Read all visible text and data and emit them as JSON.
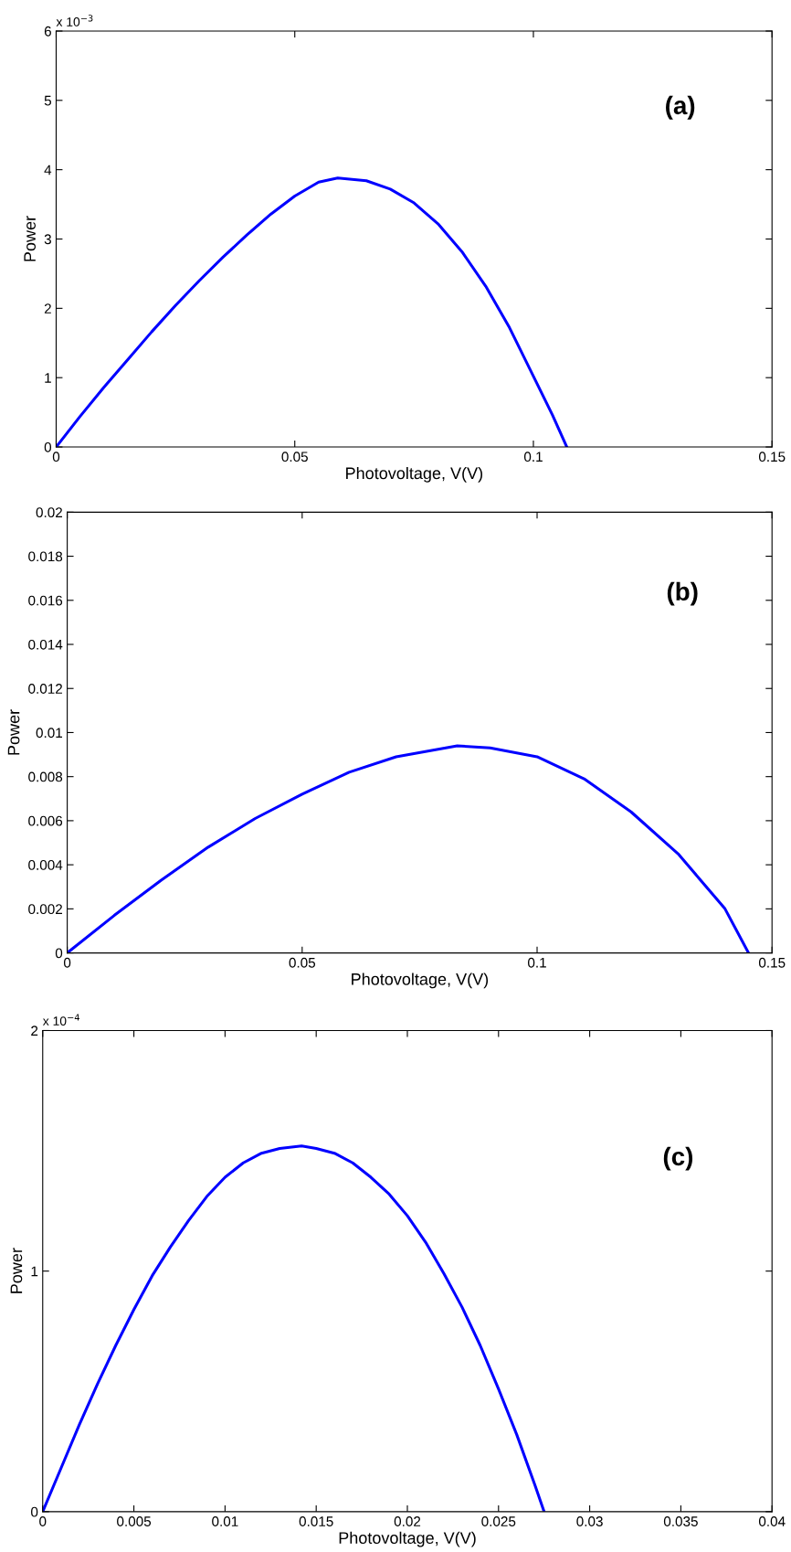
{
  "chart_data": [
    {
      "type": "line",
      "xlabel": "Photovoltage, V(V)",
      "ylabel": "Power",
      "annotations": [
        "(a)",
        "x 10$^{−3}$"
      ],
      "xlim": [
        0,
        0.15
      ],
      "xticks": [
        0,
        0.05,
        0.1,
        0.15
      ],
      "ylim": [
        0,
        6
      ],
      "yticks": [
        0,
        1,
        2,
        3,
        4,
        5,
        6
      ],
      "grid": false,
      "legend": false,
      "series": [
        {
          "color": "#0000ff",
          "x": [
            0,
            0.005,
            0.01,
            0.015,
            0.02,
            0.025,
            0.03,
            0.035,
            0.04,
            0.045,
            0.05,
            0.055,
            0.059,
            0.065,
            0.07,
            0.075,
            0.08,
            0.085,
            0.09,
            0.095,
            0.1,
            0.104,
            0.107
          ],
          "values": [
            0,
            0.44,
            0.86,
            1.26,
            1.66,
            2.04,
            2.4,
            2.74,
            3.06,
            3.36,
            3.62,
            3.82,
            3.88,
            3.84,
            3.72,
            3.52,
            3.22,
            2.82,
            2.32,
            1.72,
            1.02,
            0.46,
            0
          ]
        }
      ]
    },
    {
      "type": "line",
      "xlabel": "Photovoltage, V(V)",
      "ylabel": "Power",
      "annotations": [
        "(b)"
      ],
      "xlim": [
        0,
        0.15
      ],
      "xticks": [
        0,
        0.05,
        0.1,
        0.15
      ],
      "ylim": [
        0,
        0.02
      ],
      "yticks": [
        0,
        0.002,
        0.004,
        0.006,
        0.008,
        0.01,
        0.012,
        0.014,
        0.016,
        0.018,
        0.02
      ],
      "grid": false,
      "legend": false,
      "series": [
        {
          "color": "#0000ff",
          "x": [
            0,
            0.01,
            0.02,
            0.03,
            0.04,
            0.05,
            0.06,
            0.07,
            0.083,
            0.09,
            0.1,
            0.11,
            0.12,
            0.13,
            0.14,
            0.145
          ],
          "values": [
            0,
            0.0017,
            0.0033,
            0.0048,
            0.0061,
            0.0072,
            0.0082,
            0.0089,
            0.0094,
            0.0093,
            0.0089,
            0.0079,
            0.0064,
            0.0045,
            0.002,
            0
          ]
        }
      ]
    },
    {
      "type": "line",
      "xlabel": "Photovoltage, V(V)",
      "ylabel": "Power",
      "annotations": [
        "(c)",
        "x 10$^{−4}$"
      ],
      "xlim": [
        0,
        0.04
      ],
      "xticks": [
        0,
        0.005,
        0.01,
        0.015,
        0.02,
        0.025,
        0.03,
        0.035,
        0.04
      ],
      "ylim": [
        0,
        2
      ],
      "yticks": [
        0,
        1,
        2
      ],
      "grid": false,
      "legend": false,
      "series": [
        {
          "color": "#0000ff",
          "x": [
            0,
            0.001,
            0.002,
            0.003,
            0.004,
            0.005,
            0.006,
            0.007,
            0.008,
            0.009,
            0.01,
            0.011,
            0.012,
            0.013,
            0.0142,
            0.015,
            0.016,
            0.017,
            0.018,
            0.019,
            0.02,
            0.021,
            0.022,
            0.023,
            0.024,
            0.025,
            0.026,
            0.027,
            0.0275
          ],
          "values": [
            0,
            0.18,
            0.36,
            0.53,
            0.69,
            0.84,
            0.98,
            1.1,
            1.21,
            1.31,
            1.39,
            1.45,
            1.49,
            1.51,
            1.52,
            1.51,
            1.49,
            1.45,
            1.39,
            1.32,
            1.23,
            1.12,
            0.99,
            0.85,
            0.69,
            0.51,
            0.32,
            0.11,
            0
          ]
        }
      ]
    }
  ]
}
